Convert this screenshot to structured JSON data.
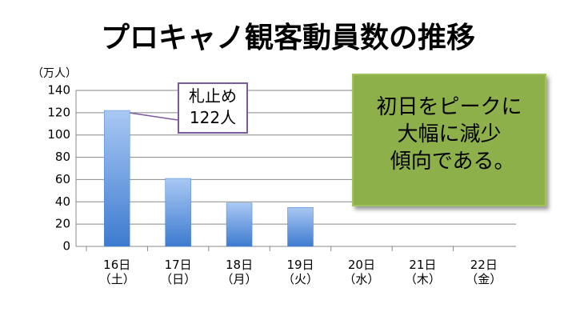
{
  "chart_data": {
    "type": "bar",
    "title": "プロキャノ観客動員数の推移",
    "y_label": "（万人）",
    "categories": [
      "16日\n（土）",
      "17日\n（日）",
      "18日\n（月）",
      "19日\n（火）",
      "20日\n（水）",
      "21日\n（木）",
      "22日\n（金）"
    ],
    "values": [
      122,
      61,
      39,
      35,
      null,
      null,
      null
    ],
    "color": "#4a86d8",
    "ylim": [
      0,
      140
    ],
    "yticks": [
      0,
      20,
      40,
      60,
      80,
      100,
      120,
      140
    ],
    "grid": true,
    "callout": "札止め\n122人",
    "note": "初日をピークに\n大幅に減少\n 傾向である。"
  }
}
